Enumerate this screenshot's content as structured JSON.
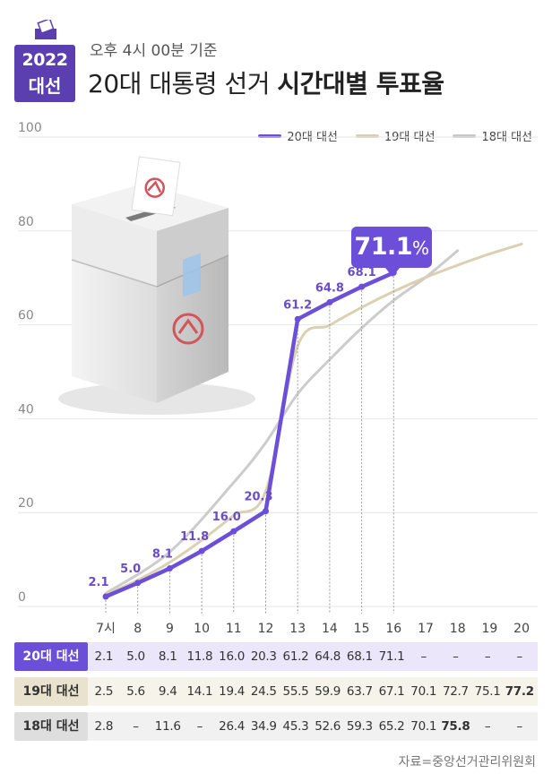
{
  "header": {
    "badge_year": "2022",
    "badge_label": "대선",
    "subtitle": "오후 4시 00분 기준",
    "title_plain": "20대 대통령 선거 ",
    "title_bold": "시간대별 투표율"
  },
  "colors": {
    "accent": "#6c4fd8",
    "series_20": "#6c4fd8",
    "series_19": "#d9cfae",
    "series_18": "#c7c7c7"
  },
  "callout": {
    "value": "71.1",
    "unit": "%"
  },
  "source": "자료=중앙선거관리위원회",
  "chart_data": {
    "type": "line",
    "x": [
      "7시",
      "8",
      "9",
      "10",
      "11",
      "12",
      "13",
      "14",
      "15",
      "16",
      "17",
      "18",
      "19",
      "20"
    ],
    "ylim": [
      0,
      100
    ],
    "yticks": [
      "0",
      "20",
      "40",
      "60",
      "80",
      "100"
    ],
    "legend_position": "top-right",
    "series": [
      {
        "name": "20대 대선",
        "values": [
          2.1,
          5.0,
          8.1,
          11.8,
          16.0,
          20.3,
          61.2,
          64.8,
          68.1,
          71.1,
          null,
          null,
          null,
          null
        ]
      },
      {
        "name": "19대 대선",
        "values": [
          2.5,
          5.6,
          9.4,
          14.1,
          19.4,
          24.5,
          55.5,
          59.9,
          63.7,
          67.1,
          70.1,
          72.7,
          75.1,
          77.2
        ]
      },
      {
        "name": "18대 대선",
        "values": [
          2.8,
          null,
          11.6,
          null,
          26.4,
          34.9,
          45.3,
          52.6,
          59.3,
          65.2,
          70.1,
          75.8,
          null,
          null
        ]
      }
    ]
  },
  "table": {
    "rows": [
      {
        "label": "20대 대선",
        "cells": [
          "2.1",
          "5.0",
          "8.1",
          "11.8",
          "16.0",
          "20.3",
          "61.2",
          "64.8",
          "68.1",
          "71.1",
          "–",
          "–",
          "–",
          "–"
        ]
      },
      {
        "label": "19대 대선",
        "cells": [
          "2.5",
          "5.6",
          "9.4",
          "14.1",
          "19.4",
          "24.5",
          "55.5",
          "59.9",
          "63.7",
          "67.1",
          "70.1",
          "72.7",
          "75.1",
          "77.2"
        ]
      },
      {
        "label": "18대 대선",
        "cells": [
          "2.8",
          "–",
          "11.6",
          "–",
          "26.4",
          "34.9",
          "45.3",
          "52.6",
          "59.3",
          "65.2",
          "70.1",
          "75.8",
          "–",
          "–"
        ]
      }
    ]
  }
}
